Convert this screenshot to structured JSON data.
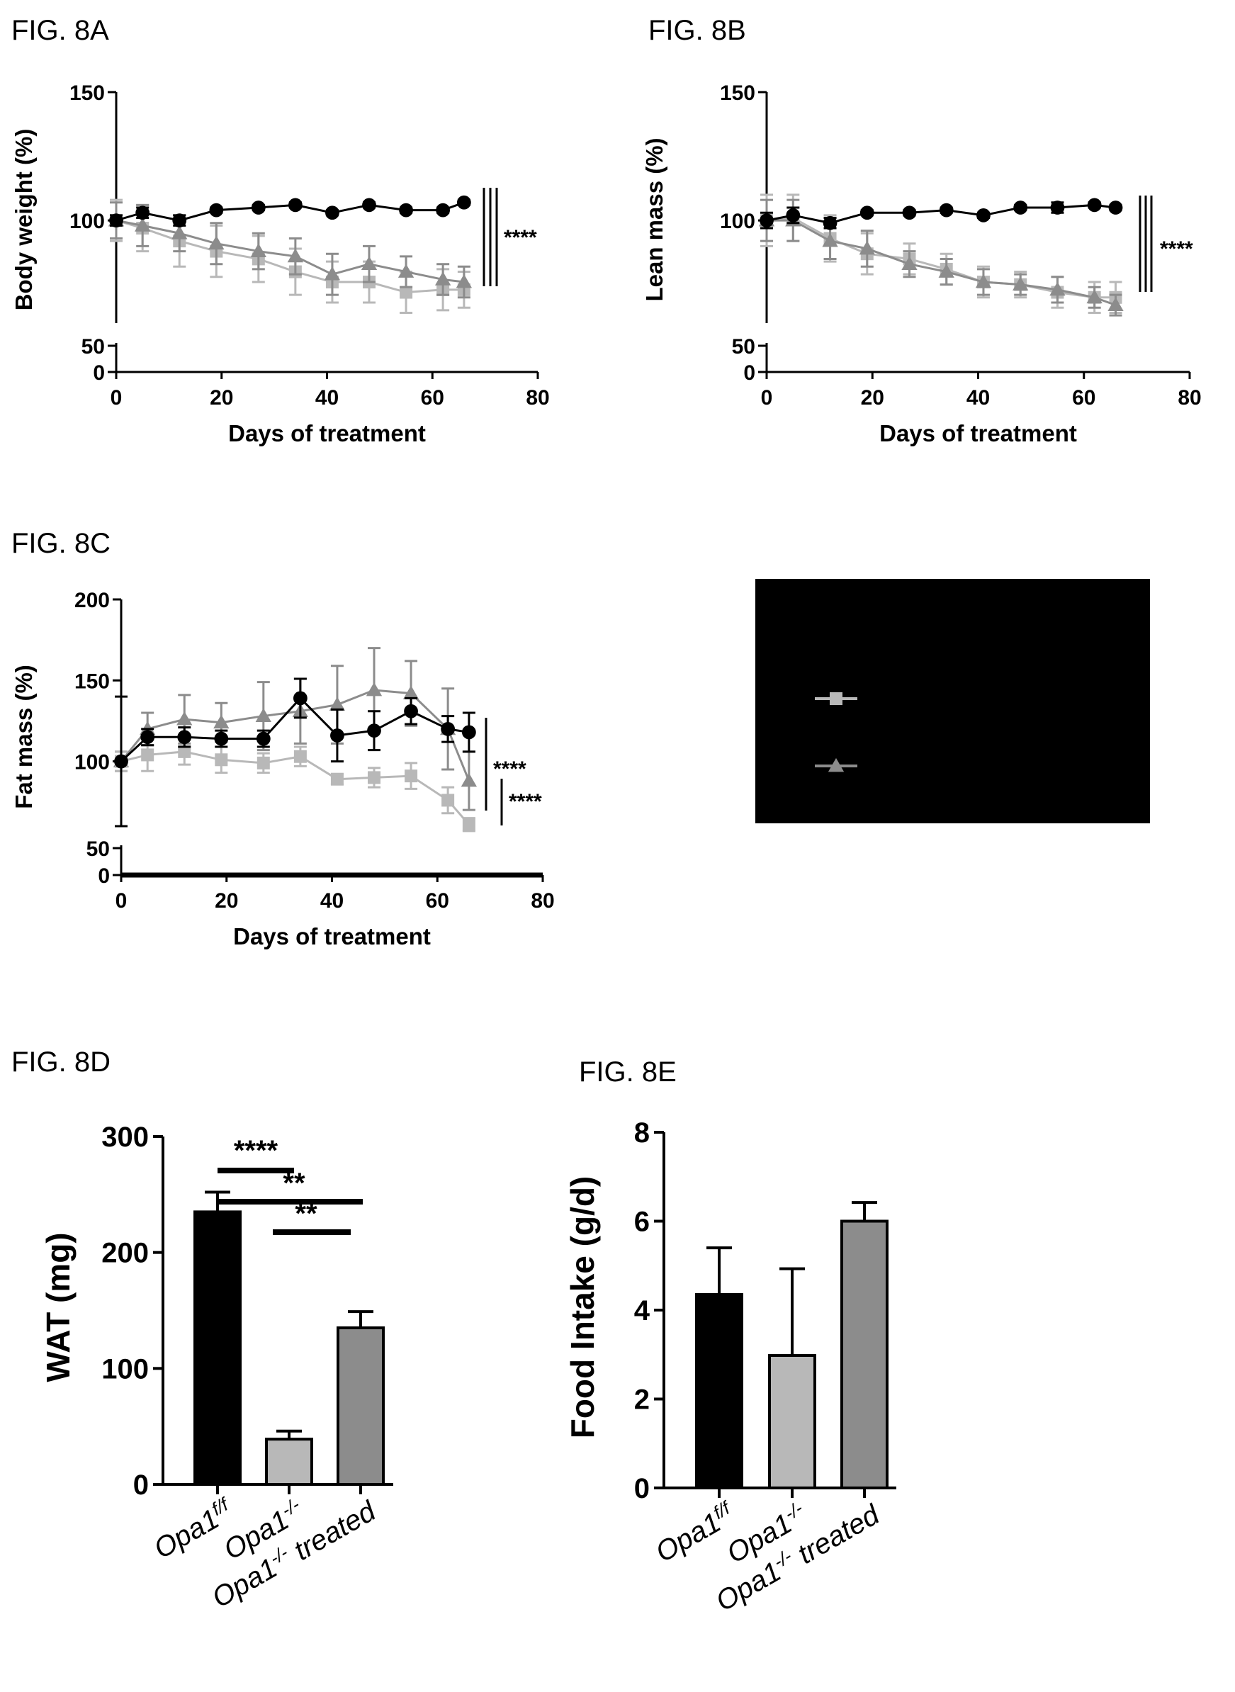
{
  "figure_labels": {
    "a": "FIG. 8A",
    "b": "FIG. 8B",
    "c": "FIG. 8C",
    "d": "FIG. 8D",
    "e": "FIG. 8E"
  },
  "colors": {
    "black_series": "#000000",
    "light_grey_series": "#b8b8b8",
    "dark_grey_series": "#8c8c8c",
    "legend_background": "#000000"
  },
  "legend": {
    "entries": [
      {
        "marker": "square",
        "color": "#b8b8b8"
      },
      {
        "marker": "triangle",
        "color": "#8c8c8c"
      }
    ]
  },
  "chart_data": [
    {
      "id": "8A",
      "type": "line",
      "xlabel": "Days of treatment",
      "ylabel": "Body weight (%)",
      "x_ticks": [
        "0",
        "20",
        "40",
        "60",
        "80"
      ],
      "y_ticks": [
        "0",
        "50",
        "100",
        "150"
      ],
      "xlim": [
        0,
        80
      ],
      "ylim": [
        0,
        150
      ],
      "y_axis_break": [
        50,
        60
      ],
      "x": [
        0,
        5,
        12,
        19,
        27,
        34,
        41,
        48,
        55,
        62,
        66
      ],
      "series": [
        {
          "marker": "circle",
          "color": "#000000",
          "values": [
            100,
            103,
            100,
            104,
            105,
            106,
            103,
            106,
            104,
            104,
            107
          ],
          "errors": [
            2,
            2,
            2,
            1,
            1,
            1,
            1,
            1,
            1,
            1,
            1
          ]
        },
        {
          "marker": "square",
          "color": "#b8b8b8",
          "values": [
            100,
            97,
            92,
            88,
            85,
            80,
            76,
            76,
            72,
            73,
            73
          ],
          "errors": [
            8,
            9,
            10,
            10,
            9,
            9,
            8,
            8,
            8,
            8,
            7
          ]
        },
        {
          "marker": "triangle",
          "color": "#8c8c8c",
          "values": [
            100,
            98,
            95,
            91,
            88,
            86,
            79,
            83,
            80,
            77,
            76
          ],
          "errors": [
            7,
            8,
            7,
            8,
            7,
            7,
            8,
            7,
            6,
            6,
            6
          ]
        }
      ],
      "significance": [
        {
          "text": "****"
        }
      ]
    },
    {
      "id": "8B",
      "type": "line",
      "xlabel": "Days of treatment",
      "ylabel": "Lean mass (%)",
      "x_ticks": [
        "0",
        "20",
        "40",
        "60",
        "80"
      ],
      "y_ticks": [
        "0",
        "50",
        "100",
        "150"
      ],
      "xlim": [
        0,
        80
      ],
      "ylim": [
        0,
        150
      ],
      "y_axis_break": [
        50,
        60
      ],
      "x": [
        0,
        5,
        12,
        19,
        27,
        34,
        41,
        48,
        55,
        62,
        66
      ],
      "series": [
        {
          "marker": "circle",
          "color": "#000000",
          "values": [
            100,
            102,
            99,
            103,
            103,
            104,
            102,
            105,
            105,
            106,
            105
          ],
          "errors": [
            3,
            3,
            2,
            1,
            1,
            1,
            1,
            1,
            2,
            1,
            1
          ]
        },
        {
          "marker": "square",
          "color": "#b8b8b8",
          "values": [
            100,
            101,
            93,
            87,
            85,
            81,
            76,
            75,
            72,
            70,
            70
          ],
          "errors": [
            10,
            9,
            9,
            8,
            6,
            6,
            6,
            5,
            6,
            6,
            6
          ]
        },
        {
          "marker": "triangle",
          "color": "#8c8c8c",
          "values": [
            100,
            100,
            92,
            89,
            83,
            80,
            76,
            75,
            73,
            70,
            67
          ],
          "errors": [
            8,
            8,
            7,
            7,
            5,
            5,
            5,
            4,
            5,
            4,
            4
          ]
        }
      ],
      "significance": [
        {
          "text": "****"
        }
      ]
    },
    {
      "id": "8C",
      "type": "line",
      "xlabel": "Days of treatment",
      "ylabel": "Fat mass (%)",
      "x_ticks": [
        "0",
        "20",
        "40",
        "60",
        "80"
      ],
      "y_ticks": [
        "0",
        "50",
        "100",
        "150",
        "200"
      ],
      "xlim": [
        0,
        80
      ],
      "ylim": [
        0,
        200
      ],
      "y_axis_break": [
        50,
        60
      ],
      "x": [
        0,
        5,
        12,
        19,
        27,
        34,
        41,
        48,
        55,
        62,
        66
      ],
      "series": [
        {
          "marker": "circle",
          "color": "#000000",
          "values": [
            100,
            115,
            115,
            114,
            114,
            139,
            116,
            119,
            131,
            120,
            118
          ],
          "errors": [
            40,
            5,
            6,
            5,
            5,
            12,
            16,
            12,
            8,
            8,
            12
          ]
        },
        {
          "marker": "square",
          "color": "#b8b8b8",
          "values": [
            100,
            104,
            106,
            101,
            99,
            103,
            89,
            90,
            91,
            76,
            61
          ],
          "errors": [
            6,
            10,
            8,
            8,
            6,
            6,
            3,
            6,
            8,
            8,
            4
          ]
        },
        {
          "marker": "triangle",
          "color": "#8c8c8c",
          "values": [
            100,
            120,
            126,
            124,
            128,
            131,
            135,
            144,
            142,
            120,
            88
          ],
          "errors": [
            6,
            10,
            15,
            12,
            21,
            20,
            24,
            26,
            20,
            25,
            18
          ]
        }
      ],
      "significance": [
        {
          "text": "****"
        },
        {
          "text": "****"
        }
      ]
    },
    {
      "id": "8D",
      "type": "bar",
      "categories": [
        "Opa1",
        "Opa1",
        "Opa1"
      ],
      "category_superscripts": [
        "f/f",
        "-/-",
        "-/-"
      ],
      "category_suffixes": [
        "",
        "",
        " treated"
      ],
      "ylabel": "WAT (mg)",
      "y_ticks": [
        "0",
        "100",
        "200",
        "300"
      ],
      "ylim": [
        0,
        300
      ],
      "values": [
        235,
        39,
        135
      ],
      "errors": [
        17,
        7,
        14
      ],
      "bar_colors": [
        "#000000",
        "#b8b8b8",
        "#8c8c8c"
      ],
      "significance": [
        {
          "from": 0,
          "to": 1,
          "text": "****"
        },
        {
          "from": 0,
          "to": 2,
          "text": "**"
        },
        {
          "from": 1,
          "to": 2,
          "text": "**"
        }
      ]
    },
    {
      "id": "8E",
      "type": "bar",
      "categories": [
        "Opa1",
        "Opa1",
        "Opa1"
      ],
      "category_superscripts": [
        "f/f",
        "-/-",
        "-/-"
      ],
      "category_suffixes": [
        "",
        "",
        " treated"
      ],
      "ylabel": "Food Intake (g/d)",
      "y_ticks": [
        "0",
        "2",
        "4",
        "6",
        "8"
      ],
      "ylim": [
        0,
        8
      ],
      "values": [
        4.35,
        2.98,
        6.0
      ],
      "errors": [
        1.05,
        1.95,
        0.42
      ],
      "bar_colors": [
        "#000000",
        "#b8b8b8",
        "#8c8c8c"
      ]
    }
  ]
}
